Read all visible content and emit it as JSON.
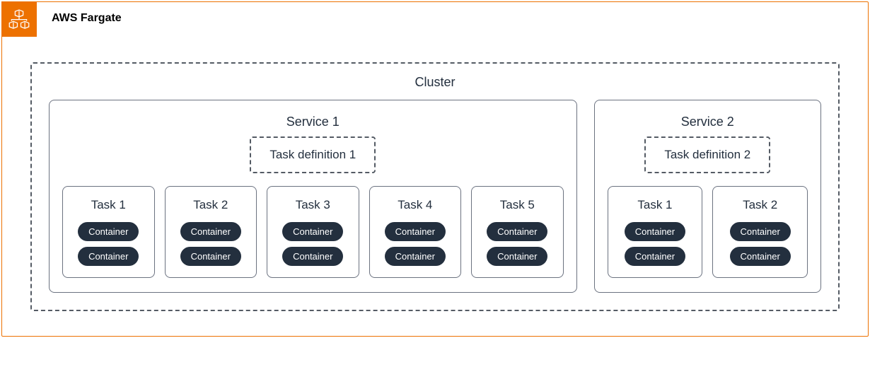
{
  "colors": {
    "accent": "#ED7100",
    "border_gray": "#6b7280",
    "dash_gray": "#545b64",
    "text_dark": "#16191f",
    "pill_bg": "#232f3e",
    "pill_text": "#ffffff",
    "cluster_text": "#232f3e"
  },
  "diagram": {
    "title": "AWS Fargate",
    "cluster_label": "Cluster",
    "container_label": "Container",
    "services": [
      {
        "label": "Service 1",
        "task_definition": "Task definition 1",
        "tasks": [
          {
            "label": "Task 1",
            "containers": 2
          },
          {
            "label": "Task 2",
            "containers": 2
          },
          {
            "label": "Task 3",
            "containers": 2
          },
          {
            "label": "Task 4",
            "containers": 2
          },
          {
            "label": "Task 5",
            "containers": 2
          }
        ]
      },
      {
        "label": "Service 2",
        "task_definition": "Task definition 2",
        "tasks": [
          {
            "label": "Task 1",
            "containers": 2
          },
          {
            "label": "Task 2",
            "containers": 2
          }
        ]
      }
    ]
  }
}
